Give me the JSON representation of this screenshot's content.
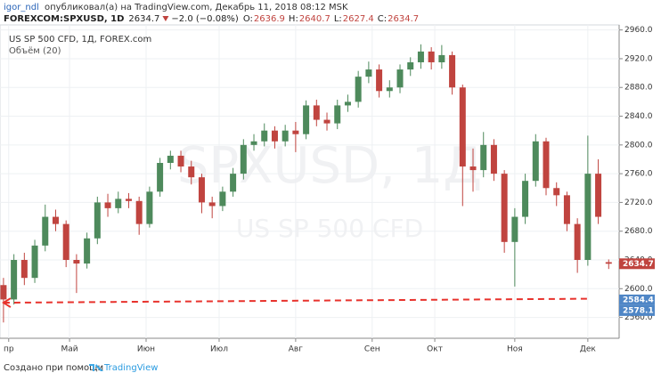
{
  "header": {
    "user": "igor_ndl",
    "published": "опубликовал(а) на TradingView.com, Декабрь 11, 2018 08:12 MSK",
    "symbol": "FOREXCOM:SPXUSD, 1D",
    "change": "−2.0 (−0.08%)",
    "o_label": "O:",
    "h_label": "H:",
    "l_label": "L:",
    "c_label": "C:"
  },
  "chart_data": {
    "type": "candlestick",
    "legend_title": "US SP 500 CFD, 1Д, FOREX.com",
    "volume_label": "Объём (20)",
    "watermark": "SPXUSD, 1Д",
    "watermark_sub": "US SP 500 CFD",
    "up_color": "#4e8a5c",
    "down_color": "#c0443f",
    "grid": true,
    "x": [
      2,
      5,
      8,
      11,
      14,
      17,
      20,
      23,
      26,
      29,
      32,
      35,
      38,
      41,
      44,
      47,
      50,
      53,
      56,
      59,
      62,
      65,
      68,
      71,
      74,
      77,
      80,
      83,
      86,
      89,
      92,
      95,
      98,
      101,
      104,
      107,
      110,
      113,
      116,
      119,
      122,
      125,
      128,
      131,
      134,
      137,
      140,
      143,
      146,
      149,
      152,
      155,
      158,
      161,
      164,
      167,
      170,
      173,
      176
    ],
    "open": [
      2605,
      2585,
      2640,
      2615,
      2660,
      2700,
      2690,
      2640,
      2635,
      2670,
      2720,
      2712,
      2725,
      2722,
      2690,
      2735,
      2775,
      2785,
      2770,
      2755,
      2720,
      2715,
      2735,
      2760,
      2800,
      2805,
      2820,
      2805,
      2820,
      2815,
      2855,
      2835,
      2830,
      2855,
      2860,
      2895,
      2905,
      2875,
      2880,
      2905,
      2915,
      2930,
      2915,
      2925,
      2880,
      2770,
      2765,
      2800,
      2760,
      2665,
      2700,
      2750,
      2805,
      2740,
      2730,
      2690,
      2640,
      2760,
      2636.9
    ],
    "high": [
      2615,
      2648,
      2650,
      2668,
      2717,
      2710,
      2695,
      2648,
      2678,
      2728,
      2732,
      2735,
      2733,
      2728,
      2742,
      2782,
      2792,
      2792,
      2778,
      2760,
      2728,
      2742,
      2768,
      2808,
      2815,
      2830,
      2826,
      2828,
      2832,
      2862,
      2863,
      2845,
      2863,
      2870,
      2903,
      2916,
      2912,
      2890,
      2912,
      2922,
      2940,
      2936,
      2939,
      2930,
      2884,
      2795,
      2818,
      2808,
      2765,
      2712,
      2760,
      2815,
      2810,
      2748,
      2735,
      2698,
      2813,
      2780,
      2640.7
    ],
    "low": [
      2553,
      2578,
      2605,
      2608,
      2652,
      2680,
      2630,
      2594,
      2628,
      2662,
      2700,
      2705,
      2712,
      2675,
      2685,
      2728,
      2766,
      2762,
      2745,
      2705,
      2698,
      2708,
      2728,
      2752,
      2792,
      2798,
      2795,
      2798,
      2790,
      2808,
      2826,
      2820,
      2822,
      2846,
      2852,
      2886,
      2866,
      2866,
      2872,
      2896,
      2906,
      2905,
      2906,
      2870,
      2715,
      2735,
      2755,
      2750,
      2650,
      2603,
      2690,
      2742,
      2730,
      2715,
      2680,
      2622,
      2632,
      2690,
      2627.4
    ],
    "close": [
      2585,
      2640,
      2615,
      2660,
      2700,
      2690,
      2640,
      2635,
      2670,
      2720,
      2712,
      2725,
      2722,
      2690,
      2735,
      2775,
      2785,
      2770,
      2755,
      2720,
      2715,
      2735,
      2760,
      2800,
      2805,
      2820,
      2805,
      2820,
      2815,
      2855,
      2835,
      2830,
      2855,
      2860,
      2895,
      2905,
      2875,
      2880,
      2905,
      2915,
      2930,
      2915,
      2925,
      2880,
      2770,
      2765,
      2800,
      2760,
      2665,
      2700,
      2750,
      2805,
      2740,
      2730,
      2690,
      2640,
      2760,
      2700,
      2634.7
    ],
    "support_line": {
      "x": [
        2,
        170
      ],
      "y": [
        2580.5,
        2586
      ],
      "color": "#e8322c"
    },
    "price_labels": [
      {
        "value": 2584.4,
        "color": "#4f86c6"
      },
      {
        "value": 2578.1,
        "color": "#4f86c6"
      }
    ],
    "xlim": [
      1,
      179
    ],
    "ylim": [
      2531,
      2967
    ],
    "xticks": [
      {
        "value": 3.5,
        "label": "пр"
      },
      {
        "value": 21,
        "label": "Май"
      },
      {
        "value": 43,
        "label": "Июн"
      },
      {
        "value": 64,
        "label": "Июл"
      },
      {
        "value": 86,
        "label": "Авг"
      },
      {
        "value": 108,
        "label": "Сен"
      },
      {
        "value": 126,
        "label": "Окт"
      },
      {
        "value": 149,
        "label": "Ноя"
      },
      {
        "value": 170,
        "label": "Дек"
      }
    ],
    "yticks": [
      {
        "value": 2560,
        "label": "2560.0"
      },
      {
        "value": 2600,
        "label": "2600.0"
      },
      {
        "value": 2640,
        "label": "2640.0"
      },
      {
        "value": 2680,
        "label": "2680.0"
      },
      {
        "value": 2720,
        "label": "2720.0"
      },
      {
        "value": 2760,
        "label": "2760.0"
      },
      {
        "value": 2800,
        "label": "2800.0"
      },
      {
        "value": 2840,
        "label": "2840.0"
      },
      {
        "value": 2880,
        "label": "2880.0"
      },
      {
        "value": 2920,
        "label": "2920.0"
      },
      {
        "value": 2960,
        "label": "2960.0"
      }
    ]
  },
  "footer": {
    "made_with": "Создано при помощи",
    "brand": "TradingView"
  }
}
